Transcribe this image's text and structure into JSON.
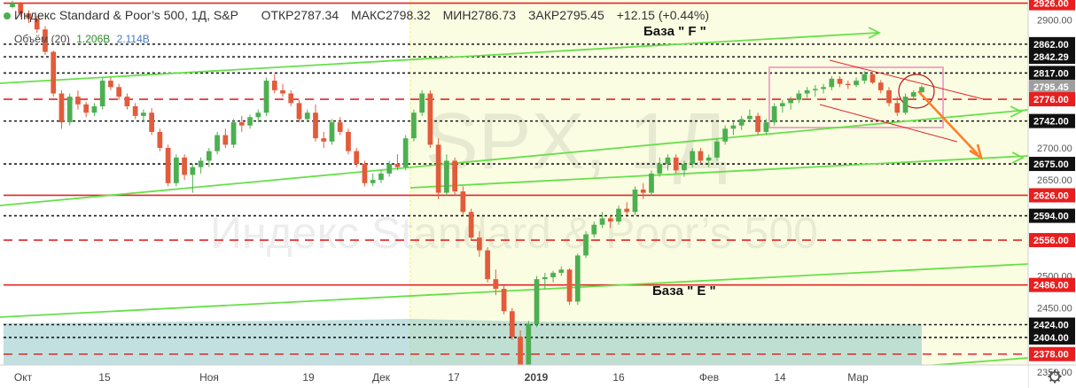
{
  "legend": {
    "title": "Индекс Standard & Poor’s 500",
    "interval": "1Д",
    "exchange": "S&P",
    "open": "ОТКР2787.34",
    "high": "МАКС2798.32",
    "low": "МИН2786.73",
    "close": "ЗАКР2795.45",
    "change": "+12.15 (+0.44%)",
    "volume_label": "Объём (20)",
    "volume_value_1": "1.206B",
    "volume_value_2": "2.114B"
  },
  "watermark": {
    "symbol": "SPX, 1Д",
    "name": "Индекс Standard & Poor’s 500"
  },
  "colors": {
    "up": "#4caf50",
    "down": "#e25b3a",
    "price_marker": "#e91e1e",
    "current_marker": "#9e9e9e",
    "green_line": "#66e04a",
    "red_line": "#e32626",
    "projection": "#ff7f27",
    "highlight_bg": "#fbfde3",
    "volume": "#8fc6c6",
    "box": "#f2a6c8"
  },
  "chart_data": {
    "type": "candlestick",
    "x_tick_labels": [
      "Окт",
      "15",
      "Ноя",
      "19",
      "Дек",
      "17",
      "2019",
      "16",
      "Фев",
      "14",
      "Мар"
    ],
    "y_tick_labels": [
      "2900.00",
      "2700.00",
      "2650.00",
      "2500.00",
      "2450.00",
      "2350.00"
    ],
    "price_levels": [
      {
        "value": 2926.0,
        "label": "2926.00",
        "style": "red-solid"
      },
      {
        "value": 2862.0,
        "label": "2862.00",
        "style": "black-dotted"
      },
      {
        "value": 2842.29,
        "label": "2842.29",
        "style": "black-dotted"
      },
      {
        "value": 2817.0,
        "label": "2817.00",
        "style": "black-dotted"
      },
      {
        "value": 2795.45,
        "label": "2795.45",
        "style": "current"
      },
      {
        "value": 2776.0,
        "label": "2776.00",
        "style": "red-dashed"
      },
      {
        "value": 2742.0,
        "label": "2742.00",
        "style": "black-dotted"
      },
      {
        "value": 2675.0,
        "label": "2675.00",
        "style": "black-dotted"
      },
      {
        "value": 2626.0,
        "label": "2626.00",
        "style": "red-solid"
      },
      {
        "value": 2594.0,
        "label": "2594.00",
        "style": "black-dotted"
      },
      {
        "value": 2556.0,
        "label": "2556.00",
        "style": "red-dashed"
      },
      {
        "value": 2486.0,
        "label": "2486.00",
        "style": "red-solid"
      },
      {
        "value": 2424.0,
        "label": "2424.00",
        "style": "black-dotted"
      },
      {
        "value": 2404.0,
        "label": "2404.00",
        "style": "black-dotted"
      },
      {
        "value": 2378.0,
        "label": "2378.00",
        "style": "red-dashed"
      }
    ],
    "annotations": [
      "База \" F \"",
      "База \" E \""
    ],
    "ohlc": [
      [
        2920,
        2930,
        2918,
        2926
      ],
      [
        2926,
        2928,
        2905,
        2910
      ],
      [
        2910,
        2915,
        2895,
        2902
      ],
      [
        2902,
        2906,
        2880,
        2885
      ],
      [
        2885,
        2890,
        2845,
        2850
      ],
      [
        2850,
        2852,
        2780,
        2785
      ],
      [
        2785,
        2790,
        2730,
        2740
      ],
      [
        2740,
        2785,
        2735,
        2780
      ],
      [
        2780,
        2790,
        2760,
        2768
      ],
      [
        2768,
        2772,
        2748,
        2755
      ],
      [
        2755,
        2770,
        2750,
        2765
      ],
      [
        2765,
        2810,
        2760,
        2805
      ],
      [
        2805,
        2810,
        2790,
        2795
      ],
      [
        2795,
        2800,
        2775,
        2780
      ],
      [
        2780,
        2785,
        2760,
        2765
      ],
      [
        2765,
        2770,
        2745,
        2750
      ],
      [
        2750,
        2760,
        2740,
        2755
      ],
      [
        2755,
        2762,
        2720,
        2725
      ],
      [
        2725,
        2730,
        2695,
        2700
      ],
      [
        2700,
        2705,
        2640,
        2645
      ],
      [
        2645,
        2690,
        2640,
        2685
      ],
      [
        2685,
        2690,
        2650,
        2658
      ],
      [
        2658,
        2675,
        2630,
        2670
      ],
      [
        2670,
        2685,
        2660,
        2680
      ],
      [
        2680,
        2700,
        2670,
        2695
      ],
      [
        2695,
        2725,
        2690,
        2720
      ],
      [
        2720,
        2730,
        2700,
        2705
      ],
      [
        2705,
        2745,
        2700,
        2740
      ],
      [
        2740,
        2750,
        2725,
        2735
      ],
      [
        2735,
        2752,
        2730,
        2748
      ],
      [
        2748,
        2760,
        2740,
        2755
      ],
      [
        2755,
        2810,
        2750,
        2805
      ],
      [
        2805,
        2815,
        2785,
        2790
      ],
      [
        2790,
        2800,
        2780,
        2785
      ],
      [
        2785,
        2790,
        2765,
        2770
      ],
      [
        2770,
        2775,
        2740,
        2745
      ],
      [
        2745,
        2760,
        2740,
        2755
      ],
      [
        2755,
        2768,
        2710,
        2715
      ],
      [
        2715,
        2725,
        2700,
        2710
      ],
      [
        2710,
        2745,
        2705,
        2740
      ],
      [
        2740,
        2748,
        2720,
        2725
      ],
      [
        2725,
        2730,
        2690,
        2695
      ],
      [
        2695,
        2700,
        2670,
        2675
      ],
      [
        2675,
        2680,
        2640,
        2645
      ],
      [
        2645,
        2660,
        2640,
        2650
      ],
      [
        2650,
        2665,
        2645,
        2660
      ],
      [
        2660,
        2680,
        2655,
        2675
      ],
      [
        2675,
        2690,
        2665,
        2670
      ],
      [
        2670,
        2720,
        2665,
        2715
      ],
      [
        2715,
        2760,
        2710,
        2755
      ],
      [
        2755,
        2790,
        2750,
        2785
      ],
      [
        2785,
        2790,
        2700,
        2705
      ],
      [
        2705,
        2715,
        2620,
        2630
      ],
      [
        2630,
        2690,
        2625,
        2680
      ],
      [
        2680,
        2685,
        2625,
        2632
      ],
      [
        2632,
        2640,
        2595,
        2600
      ],
      [
        2600,
        2605,
        2555,
        2560
      ],
      [
        2560,
        2570,
        2530,
        2540
      ],
      [
        2540,
        2545,
        2490,
        2495
      ],
      [
        2495,
        2510,
        2470,
        2480
      ],
      [
        2480,
        2485,
        2440,
        2445
      ],
      [
        2445,
        2450,
        2400,
        2405
      ],
      [
        2405,
        2415,
        2345,
        2350
      ],
      [
        2350,
        2430,
        2345,
        2425
      ],
      [
        2425,
        2500,
        2420,
        2495
      ],
      [
        2495,
        2505,
        2480,
        2498
      ],
      [
        2498,
        2508,
        2490,
        2505
      ],
      [
        2505,
        2515,
        2500,
        2510
      ],
      [
        2510,
        2512,
        2455,
        2460
      ],
      [
        2460,
        2535,
        2455,
        2532
      ],
      [
        2532,
        2570,
        2528,
        2565
      ],
      [
        2565,
        2585,
        2560,
        2580
      ],
      [
        2580,
        2600,
        2575,
        2590
      ],
      [
        2590,
        2595,
        2575,
        2585
      ],
      [
        2585,
        2610,
        2580,
        2605
      ],
      [
        2605,
        2615,
        2595,
        2600
      ],
      [
        2600,
        2640,
        2595,
        2635
      ],
      [
        2635,
        2645,
        2620,
        2630
      ],
      [
        2630,
        2665,
        2625,
        2660
      ],
      [
        2660,
        2685,
        2655,
        2675
      ],
      [
        2675,
        2690,
        2665,
        2685
      ],
      [
        2685,
        2690,
        2660,
        2665
      ],
      [
        2665,
        2680,
        2655,
        2675
      ],
      [
        2675,
        2700,
        2670,
        2695
      ],
      [
        2695,
        2700,
        2675,
        2680
      ],
      [
        2680,
        2690,
        2670,
        2685
      ],
      [
        2685,
        2715,
        2680,
        2710
      ],
      [
        2710,
        2735,
        2705,
        2730
      ],
      [
        2730,
        2740,
        2720,
        2735
      ],
      [
        2735,
        2750,
        2728,
        2745
      ],
      [
        2745,
        2760,
        2740,
        2750
      ],
      [
        2750,
        2755,
        2720,
        2725
      ],
      [
        2725,
        2745,
        2720,
        2740
      ],
      [
        2740,
        2770,
        2735,
        2765
      ],
      [
        2765,
        2775,
        2755,
        2770
      ],
      [
        2770,
        2780,
        2760,
        2775
      ],
      [
        2775,
        2790,
        2770,
        2785
      ],
      [
        2785,
        2795,
        2778,
        2790
      ],
      [
        2790,
        2798,
        2780,
        2792
      ],
      [
        2792,
        2800,
        2785,
        2795
      ],
      [
        2795,
        2812,
        2790,
        2808
      ],
      [
        2808,
        2812,
        2795,
        2800
      ],
      [
        2800,
        2805,
        2792,
        2798
      ],
      [
        2798,
        2810,
        2795,
        2805
      ],
      [
        2805,
        2820,
        2800,
        2815
      ],
      [
        2815,
        2818,
        2800,
        2802
      ],
      [
        2802,
        2806,
        2785,
        2790
      ],
      [
        2790,
        2795,
        2765,
        2770
      ],
      [
        2770,
        2780,
        2750,
        2755
      ],
      [
        2755,
        2785,
        2752,
        2780
      ],
      [
        2780,
        2790,
        2775,
        2787
      ],
      [
        2787,
        2798,
        2786,
        2795
      ]
    ]
  }
}
